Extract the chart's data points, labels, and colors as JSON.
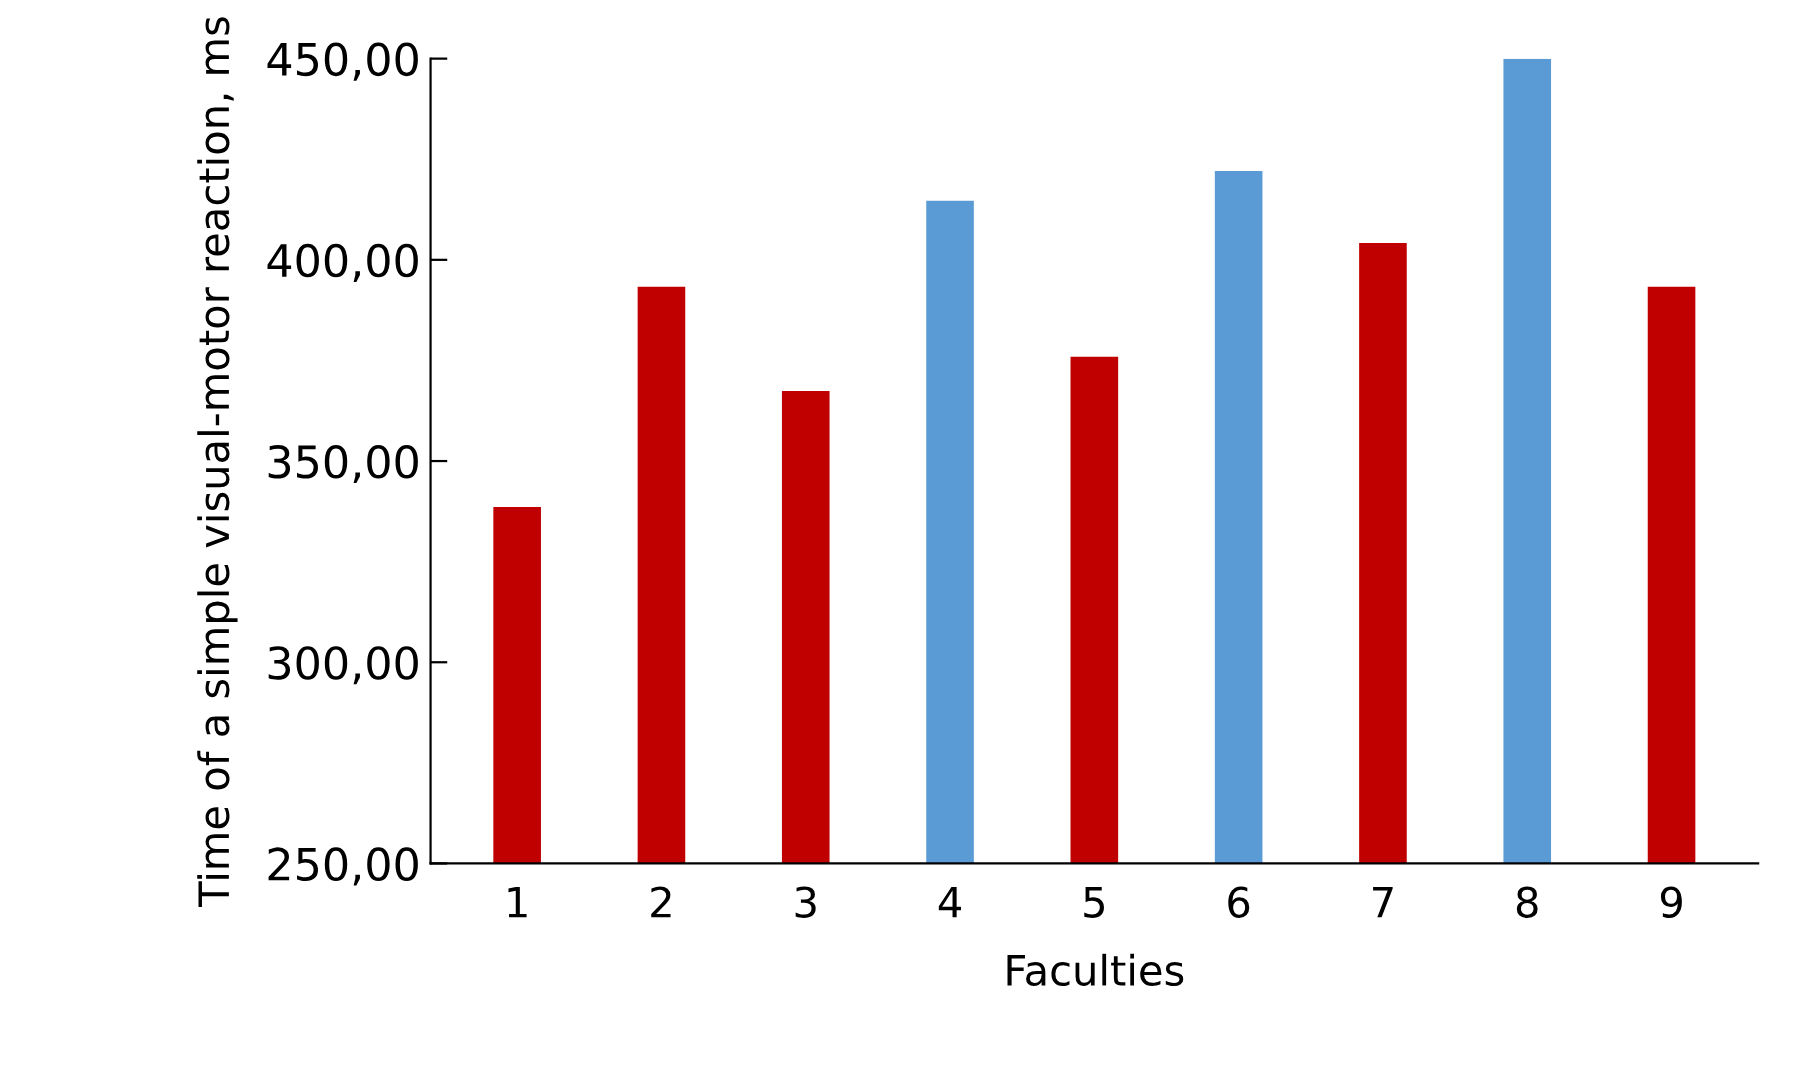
{
  "chart_data": {
    "type": "bar",
    "xlabel": "Faculties",
    "ylabel": "Time of a simple visual-motor reaction, ms",
    "categories": [
      "1",
      "2",
      "3",
      "4",
      "5",
      "6",
      "7",
      "8",
      "9"
    ],
    "values": [
      338.6,
      393.3,
      367.4,
      414.7,
      375.9,
      422.1,
      404.2,
      450,
      393.3
    ],
    "colors": [
      "#c00000",
      "#c00000",
      "#c00000",
      "#5b9bd5",
      "#c00000",
      "#5b9bd5",
      "#c00000",
      "#5b9bd5",
      "#c00000"
    ],
    "ylim": [
      250,
      450
    ],
    "yticks": [
      {
        "value": 250,
        "label": "250,00"
      },
      {
        "value": 300,
        "label": "300,00"
      },
      {
        "value": 350,
        "label": "350,00"
      },
      {
        "value": 400,
        "label": "400,00"
      },
      {
        "value": 450,
        "label": "450,00"
      }
    ],
    "grid": false
  }
}
